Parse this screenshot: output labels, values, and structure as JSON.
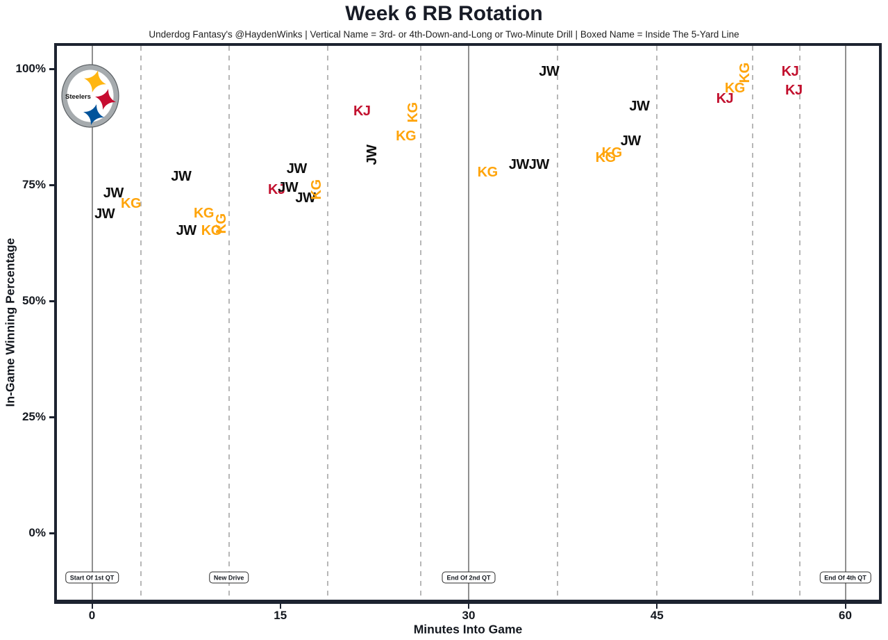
{
  "header": {
    "title": "Week 6 RB Rotation",
    "subtitle": "Underdog Fantasy's @HaydenWinks | Vertical Name = 3rd- or 4th-Down-and-Long or Two-Minute Drill | Boxed Name = Inside The 5-Yard Line"
  },
  "chart_data": {
    "type": "scatter",
    "title": "Week 6 RB Rotation",
    "xlabel": "Minutes Into Game",
    "ylabel": "In-Game Winning Percentage",
    "x_range_minutes": [
      0,
      60
    ],
    "y_range_pct": [
      0,
      100
    ],
    "grid": "vertical only",
    "x_ticks": [
      {
        "label": "0",
        "minute": 0
      },
      {
        "label": "15",
        "minute": 15
      },
      {
        "label": "30",
        "minute": 30
      },
      {
        "label": "45",
        "minute": 45
      },
      {
        "label": "60",
        "minute": 60
      }
    ],
    "y_ticks": [
      {
        "label": "100%",
        "pct": 100
      },
      {
        "label": "75%",
        "pct": 75
      },
      {
        "label": "50%",
        "pct": 50
      },
      {
        "label": "25%",
        "pct": 25
      },
      {
        "label": "0%",
        "pct": 0
      }
    ],
    "gridlines": {
      "solid_minutes": [
        0,
        30,
        60
      ],
      "dashed_minutes": [
        3.9,
        10.9,
        18.8,
        26.2,
        37.1,
        45.0,
        52.6,
        56.4
      ]
    },
    "annotations": [
      {
        "label": "Start Of 1st QT",
        "minute": 0
      },
      {
        "label": "New Drive",
        "minute": 10.9
      },
      {
        "label": "End Of 2nd QT",
        "minute": 30
      },
      {
        "label": "End Of 4th QT",
        "minute": 60
      }
    ],
    "players": [
      {
        "code": "JW",
        "color": "#0e0e0e"
      },
      {
        "code": "KG",
        "color": "#FFA40A"
      },
      {
        "code": "KJ",
        "color": "#C2102E"
      }
    ],
    "points": [
      {
        "player": "JW",
        "minute": 1.0,
        "win_pct": 68.7,
        "vertical": false
      },
      {
        "player": "JW",
        "minute": 1.7,
        "win_pct": 73.2,
        "vertical": false
      },
      {
        "player": "KG",
        "minute": 3.1,
        "win_pct": 70.9,
        "vertical": false
      },
      {
        "player": "JW",
        "minute": 7.1,
        "win_pct": 76.8,
        "vertical": false
      },
      {
        "player": "JW",
        "minute": 7.5,
        "win_pct": 65.1,
        "vertical": false
      },
      {
        "player": "KG",
        "minute": 8.9,
        "win_pct": 68.9,
        "vertical": false
      },
      {
        "player": "KG",
        "minute": 9.5,
        "win_pct": 65.1,
        "vertical": false
      },
      {
        "player": "KG",
        "minute": 10.3,
        "win_pct": 66.6,
        "vertical": true
      },
      {
        "player": "KJ",
        "minute": 14.7,
        "win_pct": 73.9,
        "vertical": false
      },
      {
        "player": "JW",
        "minute": 15.6,
        "win_pct": 74.4,
        "vertical": false
      },
      {
        "player": "JW",
        "minute": 16.3,
        "win_pct": 78.4,
        "vertical": false
      },
      {
        "player": "JW",
        "minute": 17.0,
        "win_pct": 72.2,
        "vertical": false
      },
      {
        "player": "KG",
        "minute": 17.9,
        "win_pct": 73.9,
        "vertical": true
      },
      {
        "player": "KJ",
        "minute": 21.5,
        "win_pct": 90.9,
        "vertical": false
      },
      {
        "player": "JW",
        "minute": 22.3,
        "win_pct": 81.4,
        "vertical": true
      },
      {
        "player": "KG",
        "minute": 25.0,
        "win_pct": 85.5,
        "vertical": false
      },
      {
        "player": "KG",
        "minute": 25.6,
        "win_pct": 90.6,
        "vertical": true
      },
      {
        "player": "KG",
        "minute": 31.5,
        "win_pct": 77.7,
        "vertical": false
      },
      {
        "player": "JW",
        "minute": 34.0,
        "win_pct": 79.3,
        "vertical": false
      },
      {
        "player": "JW",
        "minute": 35.6,
        "win_pct": 79.3,
        "vertical": false
      },
      {
        "player": "JW",
        "minute": 36.4,
        "win_pct": 99.4,
        "vertical": false
      },
      {
        "player": "KG",
        "minute": 40.9,
        "win_pct": 80.8,
        "vertical": false
      },
      {
        "player": "KG",
        "minute": 41.4,
        "win_pct": 81.9,
        "vertical": false
      },
      {
        "player": "JW",
        "minute": 42.9,
        "win_pct": 84.4,
        "vertical": false
      },
      {
        "player": "JW",
        "minute": 43.6,
        "win_pct": 91.9,
        "vertical": false
      },
      {
        "player": "KJ",
        "minute": 50.4,
        "win_pct": 93.6,
        "vertical": false
      },
      {
        "player": "KG",
        "minute": 51.2,
        "win_pct": 95.8,
        "vertical": false
      },
      {
        "player": "KG",
        "minute": 52.0,
        "win_pct": 99.1,
        "vertical": true
      },
      {
        "player": "KJ",
        "minute": 55.6,
        "win_pct": 99.4,
        "vertical": false
      },
      {
        "player": "KJ",
        "minute": 55.9,
        "win_pct": 95.4,
        "vertical": false
      }
    ],
    "logo": {
      "team": "Steelers",
      "text": "Steelers",
      "ring_color": "#A6ABAE",
      "gold": "#FFB612",
      "red": "#C60C30",
      "blue": "#00539B"
    }
  }
}
